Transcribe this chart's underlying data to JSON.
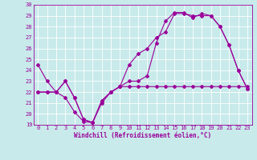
{
  "xlabel": "Windchill (Refroidissement éolien,°C)",
  "xlim": [
    -0.5,
    23.5
  ],
  "ylim": [
    19,
    30
  ],
  "yticks": [
    19,
    20,
    21,
    22,
    23,
    24,
    25,
    26,
    27,
    28,
    29,
    30
  ],
  "xticks": [
    0,
    1,
    2,
    3,
    4,
    5,
    6,
    7,
    8,
    9,
    10,
    11,
    12,
    13,
    14,
    15,
    16,
    17,
    18,
    19,
    20,
    21,
    22,
    23
  ],
  "bg_color": "#c8eaea",
  "line_color": "#9b009b",
  "grid_color": "#ffffff",
  "line1_x": [
    0,
    1,
    2,
    3,
    4,
    5,
    6,
    7,
    8,
    9,
    10,
    11,
    12,
    13,
    14,
    15,
    16,
    17,
    18,
    19,
    20,
    21,
    22,
    23
  ],
  "line1_y": [
    24.5,
    23.0,
    22.0,
    21.5,
    20.2,
    19.3,
    19.2,
    21.0,
    22.0,
    22.5,
    23.0,
    23.0,
    23.5,
    26.5,
    28.5,
    29.3,
    29.3,
    28.8,
    29.2,
    29.0,
    28.0,
    26.3,
    24.0,
    22.3
  ],
  "line2_x": [
    0,
    1,
    2,
    3,
    4,
    5,
    6,
    7,
    8,
    9,
    10,
    11,
    12,
    13,
    14,
    15,
    16,
    17,
    18,
    19,
    20,
    21,
    22,
    23
  ],
  "line2_y": [
    22.0,
    22.0,
    22.0,
    23.0,
    21.5,
    19.5,
    19.2,
    21.2,
    22.0,
    22.5,
    22.5,
    22.5,
    22.5,
    22.5,
    22.5,
    22.5,
    22.5,
    22.5,
    22.5,
    22.5,
    22.5,
    22.5,
    22.5,
    22.5
  ],
  "line3_x": [
    0,
    1,
    2,
    3,
    4,
    5,
    6,
    7,
    8,
    9,
    10,
    11,
    12,
    13,
    14,
    15,
    16,
    17,
    18,
    19,
    20,
    21,
    22,
    23
  ],
  "line3_y": [
    22.0,
    22.0,
    22.0,
    23.0,
    21.5,
    19.5,
    19.2,
    21.2,
    22.0,
    22.5,
    24.5,
    25.5,
    26.0,
    27.0,
    27.5,
    29.2,
    29.2,
    29.0,
    29.0,
    29.0,
    28.0,
    26.3,
    24.0,
    22.3
  ],
  "tick_fontsize": 5,
  "xlabel_fontsize": 5.5
}
